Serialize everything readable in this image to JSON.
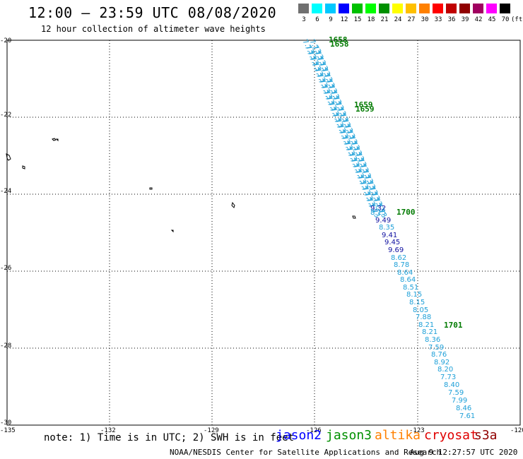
{
  "title": "12:00 – 23:59 UTC 08/08/2020",
  "subtitle": "12 hour collection of altimeter wave heights",
  "legend": {
    "colors": [
      "#707070",
      "#00ffff",
      "#00c8ff",
      "#0000ff",
      "#00c000",
      "#00ff00",
      "#009000",
      "#ffff00",
      "#ffc000",
      "#ff8000",
      "#ff0000",
      "#c00000",
      "#900000",
      "#a00060",
      "#ff00ff",
      "#000000"
    ],
    "labels": [
      "3",
      "6",
      "9",
      "12",
      "15",
      "18",
      "21",
      "24",
      "27",
      "30",
      "33",
      "36",
      "39",
      "42",
      "45",
      "70",
      "(ft)"
    ]
  },
  "axes": {
    "lon_ticks": [
      "-135",
      "-132",
      "-129",
      "-126",
      "-123",
      "-120"
    ],
    "lat_ticks": [
      "-20",
      "-22",
      "-24",
      "-26",
      "-28",
      "-30"
    ],
    "lon_range": [
      -135,
      -120
    ],
    "lat_range": [
      -20,
      -30
    ]
  },
  "time_labels": [
    "1658",
    "1659",
    "1700",
    "1701"
  ],
  "track_values": {
    "dense_label": "7.73",
    "jason3_dark": [
      "9.32",
      "9.49",
      "9.41",
      "9.45",
      "9.69"
    ],
    "jason3_light": [
      "8.15",
      "8.35",
      "8.62",
      "8.78",
      "8.64",
      "8.64",
      "8.51",
      "8.15",
      "8.15",
      "8.05",
      "7.88",
      "8.21",
      "8.21",
      "8.36",
      "7.59",
      "8.76",
      "8.92",
      "8.20",
      "7.73",
      "8.40",
      "7.59",
      "7.99",
      "8.46",
      "7.61"
    ]
  },
  "colors": {
    "track_light": "#1ea0d8",
    "track_dark": "#1010a0",
    "time_label": "#007a00",
    "jason2": "#0000ff",
    "jason3": "#009000",
    "altika": "#ff8000",
    "cryosat": "#e00000",
    "s3a": "#900000"
  },
  "note": "note: 1) Time is in UTC; 2) SWH is in feet",
  "satellites": [
    "jason2",
    "jason3",
    "altika",
    "cryosat",
    "s3a"
  ],
  "credit": "NOAA/NESDIS Center for Satellite Applications and Research",
  "timestamp": "Aug  9 12:27:57 UTC 2020"
}
